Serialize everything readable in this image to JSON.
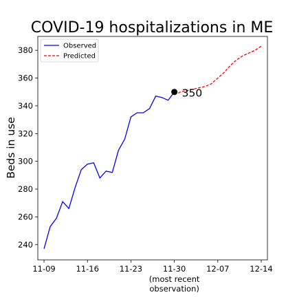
{
  "chart_data": {
    "type": "line",
    "title": "COVID-19 hospitalizations in ME",
    "ylabel": "Beds in use",
    "xlabel": "",
    "x_ticks": [
      "11-09",
      "11-16",
      "11-23",
      "11-30",
      "12-07",
      "12-14"
    ],
    "x_tick_note": "(most recent\nobservation)",
    "y_ticks": [
      240,
      260,
      280,
      300,
      320,
      340,
      360,
      380
    ],
    "xlim": [
      "2020-11-08",
      "2020-12-15"
    ],
    "ylim": [
      229,
      390
    ],
    "legend": {
      "position": "top-left",
      "entries": [
        "Observed",
        "Predicted"
      ]
    },
    "series": [
      {
        "name": "Observed",
        "color": "#0000ff",
        "style": "solid",
        "x": [
          "2020-11-09",
          "2020-11-10",
          "2020-11-11",
          "2020-11-12",
          "2020-11-13",
          "2020-11-14",
          "2020-11-15",
          "2020-11-16",
          "2020-11-17",
          "2020-11-18",
          "2020-11-19",
          "2020-11-20",
          "2020-11-21",
          "2020-11-22",
          "2020-11-23",
          "2020-11-24",
          "2020-11-25",
          "2020-11-26",
          "2020-11-27",
          "2020-11-28",
          "2020-11-29",
          "2020-11-30"
        ],
        "values": [
          237,
          253,
          259,
          271,
          266,
          281,
          294,
          298,
          299,
          288,
          293,
          292,
          308,
          316,
          332,
          335,
          335,
          338,
          347,
          346,
          344,
          350
        ]
      },
      {
        "name": "Predicted",
        "color": "#ff0000",
        "style": "dashed",
        "x": [
          "2020-11-30",
          "2020-12-01",
          "2020-12-02",
          "2020-12-03",
          "2020-12-04",
          "2020-12-05",
          "2020-12-06",
          "2020-12-07",
          "2020-12-08",
          "2020-12-09",
          "2020-12-10",
          "2020-12-11",
          "2020-12-12",
          "2020-12-13",
          "2020-12-14"
        ],
        "values": [
          348,
          350,
          351,
          352,
          353,
          354,
          356,
          360,
          364,
          369,
          373,
          376,
          378,
          380,
          383
        ]
      }
    ],
    "annotation": {
      "x": "2020-11-30",
      "y": 350,
      "label": "350"
    }
  }
}
